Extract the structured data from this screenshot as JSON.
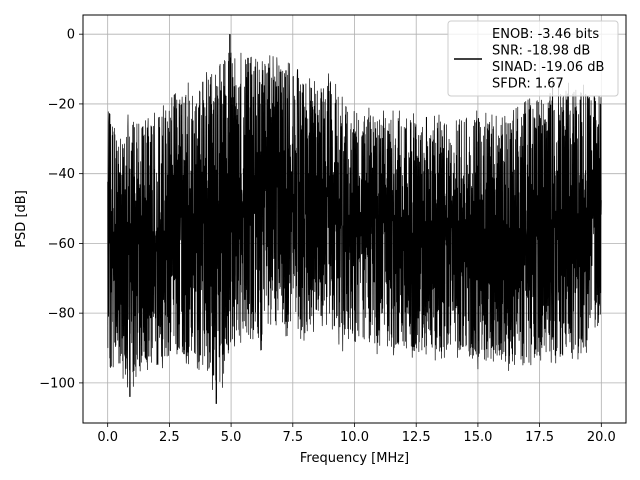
{
  "chart_data": {
    "type": "line",
    "xlabel": "Frequency [MHz]",
    "ylabel": "PSD [dB]",
    "xlim": [
      -1.0,
      21.0
    ],
    "ylim": [
      -111.5,
      5.5
    ],
    "xticks": [
      0.0,
      2.5,
      5.0,
      7.5,
      10.0,
      12.5,
      15.0,
      17.5,
      20.0
    ],
    "xtick_labels": [
      "0.0",
      "2.5",
      "5.0",
      "7.5",
      "10.0",
      "12.5",
      "15.0",
      "17.5",
      "20.0"
    ],
    "yticks": [
      0,
      -20,
      -40,
      -60,
      -80,
      -100
    ],
    "ytick_labels": [
      "0",
      "−20",
      "−40",
      "−60",
      "−80",
      "−100"
    ],
    "grid": true,
    "legend_position": "top-right",
    "legend": {
      "lines": [
        "ENOB: -3.46 bits",
        "SNR: -18.98 dB",
        "SINAD: -19.06 dB",
        "SFDR: 1.67"
      ]
    },
    "series": [
      {
        "color": "#000000",
        "x_range": [
          0.0,
          20.0
        ],
        "trace_description": "dense noise-like spectrum spanning roughly -85 to -25 dB",
        "envelope": {
          "x": [
            0.0,
            0.5,
            1.0,
            1.5,
            2.0,
            2.5,
            3.0,
            3.5,
            4.0,
            4.5,
            5.0,
            5.5,
            6.0,
            6.5,
            7.0,
            7.5,
            8.0,
            8.5,
            9.0,
            9.5,
            10.0,
            11.0,
            12.0,
            13.0,
            14.0,
            15.0,
            16.0,
            17.0,
            18.0,
            19.0,
            20.0
          ],
          "upper": [
            -22,
            -27,
            -21,
            -25,
            -22,
            -19,
            -15,
            -13,
            -11,
            -7,
            -1,
            -3,
            -5,
            -6,
            -7,
            -9,
            -12,
            -14,
            -11,
            -18,
            -20,
            -22,
            -22,
            -24,
            -22,
            -22,
            -24,
            -19,
            -14,
            -14,
            -16
          ],
          "lower": [
            -98,
            -97,
            -104,
            -96,
            -97,
            -94,
            -94,
            -95,
            -98,
            -106,
            -90,
            -88,
            -91,
            -90,
            -87,
            -86,
            -88,
            -84,
            -83,
            -91,
            -88,
            -92,
            -92,
            -94,
            -92,
            -96,
            -96,
            -98,
            -94,
            -96,
            -84
          ]
        },
        "notable_points": [
          {
            "x": 0.9,
            "y": -104
          },
          {
            "x": 4.4,
            "y": -106
          },
          {
            "x": 4.95,
            "y": 0
          }
        ]
      }
    ]
  }
}
